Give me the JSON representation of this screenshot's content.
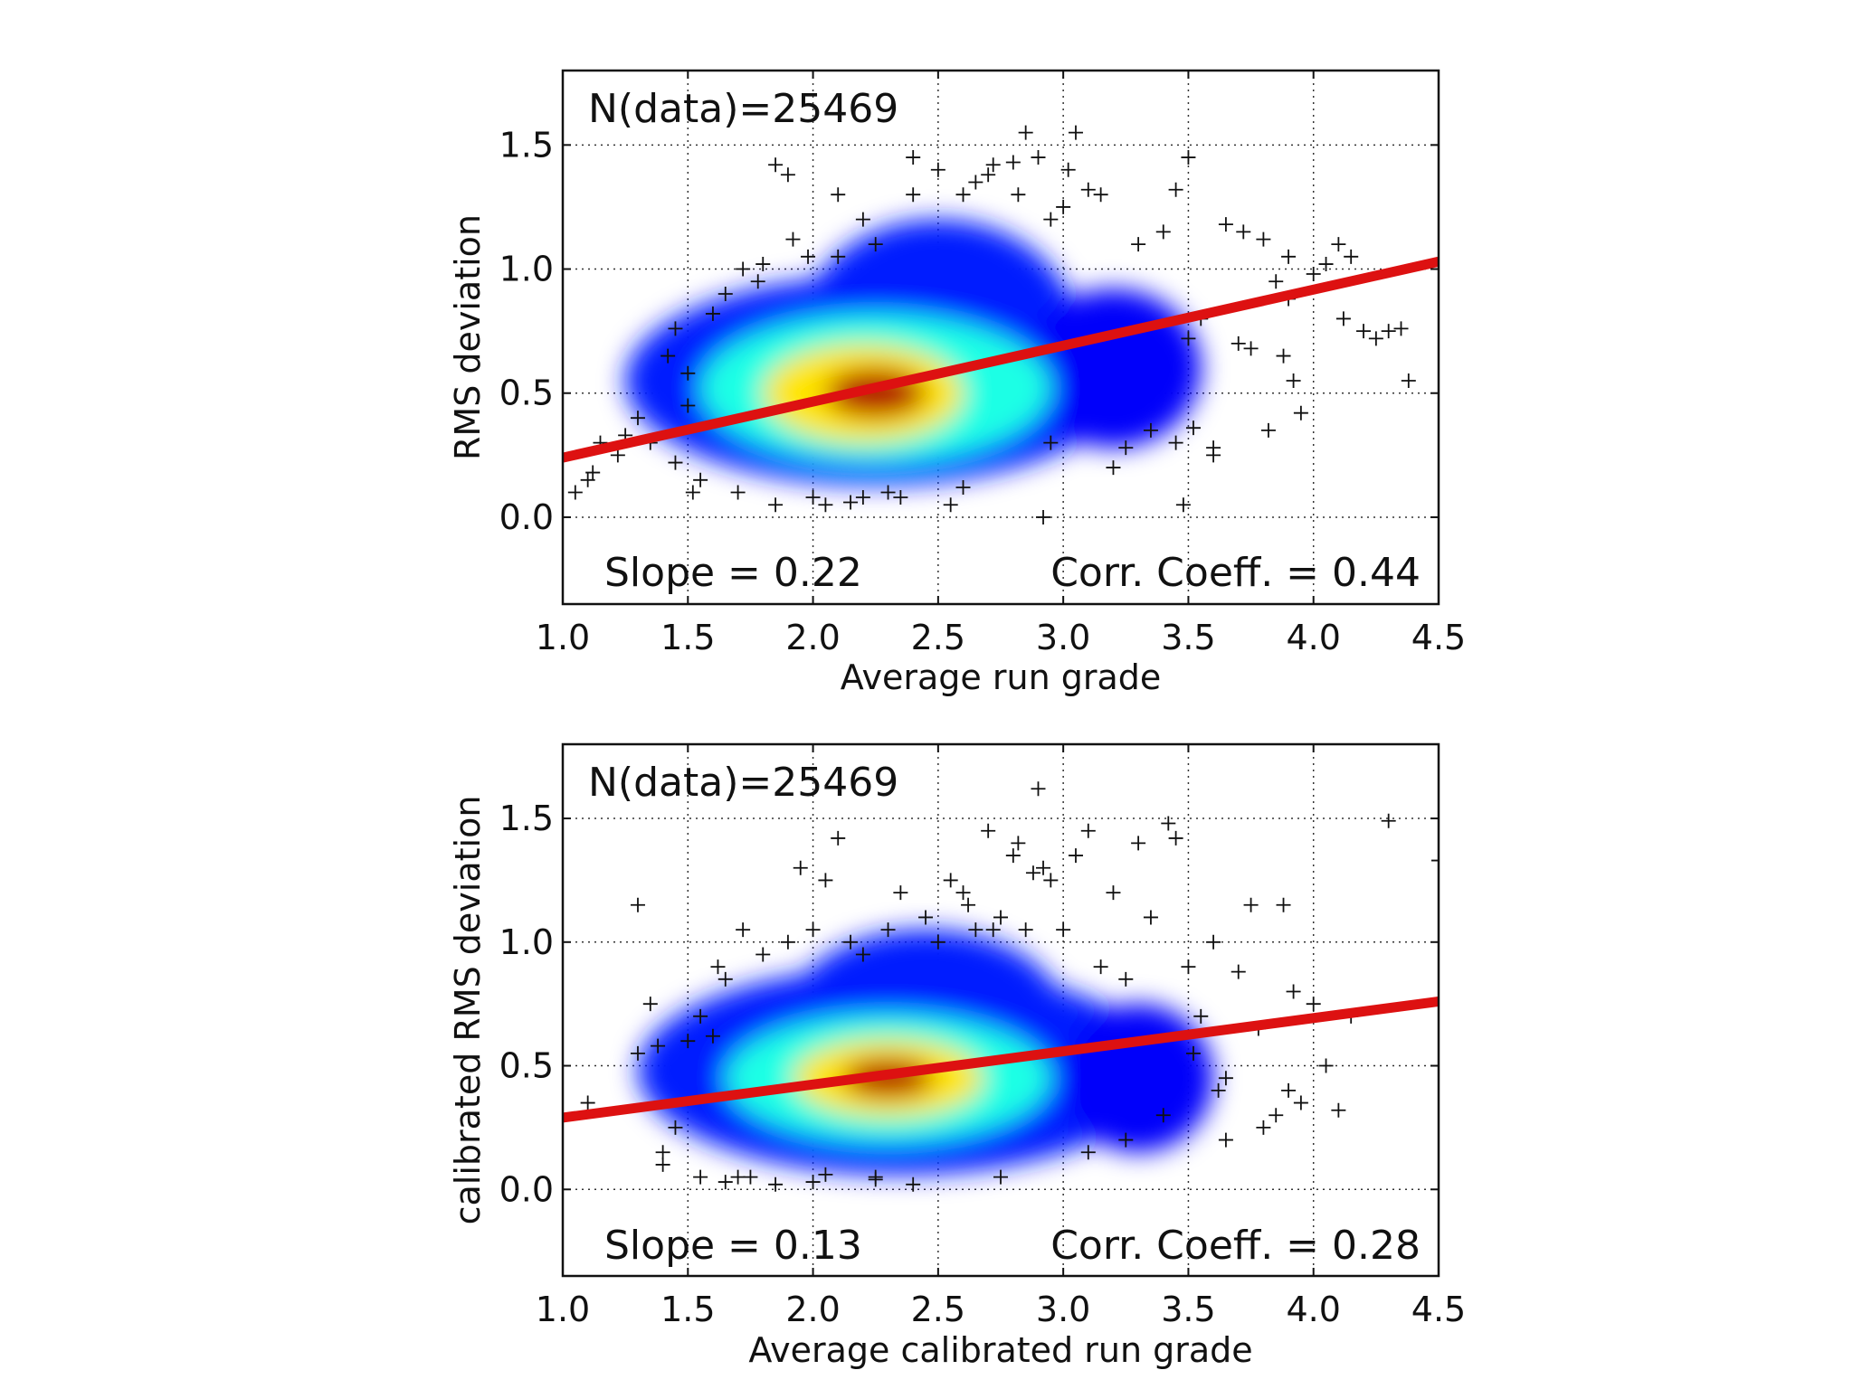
{
  "chart_data": [
    {
      "type": "scatter",
      "subtype": "density-heatmap-with-outliers-and-fit-line",
      "xlabel": "Average run grade",
      "ylabel": "RMS deviation",
      "xlim": [
        1.0,
        4.5
      ],
      "ylim": [
        -0.35,
        1.8
      ],
      "xticks": [
        "1.0",
        "1.5",
        "2.0",
        "2.5",
        "3.0",
        "3.5",
        "4.0",
        "4.5"
      ],
      "yticks": [
        "0.0",
        "0.5",
        "1.0",
        "1.5"
      ],
      "grid": true,
      "n_label": "N(data)=25469",
      "slope_label": "Slope = 0.22",
      "corr_label": "Corr. Coeff. = 0.44",
      "fit_line": {
        "x": [
          1.0,
          4.5
        ],
        "y": [
          0.24,
          1.03
        ],
        "color": "#dd1111"
      },
      "density": {
        "center_x": 2.25,
        "center_y": 0.5,
        "blobs": [
          {
            "x": 2.25,
            "y": 0.55,
            "rx": 1.0,
            "ry": 0.42,
            "level": 0.15
          },
          {
            "x": 2.5,
            "y": 0.75,
            "rx": 0.55,
            "ry": 0.45,
            "level": 0.15
          },
          {
            "x": 3.2,
            "y": 0.6,
            "rx": 0.35,
            "ry": 0.32,
            "level": 0.12
          },
          {
            "x": 2.25,
            "y": 0.52,
            "rx": 0.7,
            "ry": 0.3,
            "level": 0.4
          },
          {
            "x": 2.2,
            "y": 0.5,
            "rx": 0.4,
            "ry": 0.2,
            "level": 0.65
          },
          {
            "x": 2.25,
            "y": 0.5,
            "rx": 0.2,
            "ry": 0.1,
            "level": 0.95
          }
        ]
      },
      "outliers": {
        "x": [
          1.05,
          1.1,
          1.12,
          1.15,
          1.22,
          1.25,
          1.3,
          1.35,
          1.42,
          1.45,
          1.5,
          1.5,
          1.52,
          1.6,
          1.65,
          1.72,
          1.78,
          1.8,
          1.85,
          1.9,
          1.92,
          1.98,
          2.0,
          2.05,
          2.1,
          2.1,
          2.15,
          2.2,
          2.2,
          2.25,
          2.35,
          2.4,
          2.4,
          2.5,
          2.55,
          2.6,
          2.65,
          2.7,
          2.72,
          2.8,
          2.82,
          2.85,
          2.9,
          2.92,
          2.95,
          3.0,
          3.02,
          3.05,
          3.1,
          3.15,
          3.2,
          3.25,
          3.3,
          3.35,
          3.4,
          3.45,
          3.48,
          3.5,
          3.5,
          3.52,
          3.55,
          3.6,
          3.65,
          3.7,
          3.72,
          3.75,
          3.8,
          3.82,
          3.85,
          3.88,
          3.9,
          3.92,
          3.95,
          4.0,
          4.05,
          4.1,
          4.12,
          4.15,
          4.2,
          4.25,
          4.3,
          4.35,
          4.38,
          1.7,
          1.85,
          2.95,
          3.45,
          3.6,
          3.9,
          1.45,
          1.55,
          2.3,
          2.6
        ],
        "y": [
          0.1,
          0.15,
          0.18,
          0.3,
          0.25,
          0.33,
          0.4,
          0.3,
          0.65,
          0.76,
          0.58,
          0.45,
          0.1,
          0.82,
          0.9,
          1.0,
          0.95,
          1.02,
          1.42,
          1.38,
          1.12,
          1.05,
          0.08,
          0.05,
          1.05,
          1.3,
          0.06,
          1.2,
          0.08,
          1.1,
          0.08,
          1.3,
          1.45,
          1.4,
          0.05,
          1.3,
          1.35,
          1.38,
          1.42,
          1.43,
          1.3,
          1.55,
          1.45,
          0.0,
          1.2,
          1.25,
          1.4,
          1.55,
          1.32,
          1.3,
          0.2,
          0.28,
          1.1,
          0.35,
          1.15,
          1.32,
          0.05,
          1.45,
          0.72,
          0.36,
          0.8,
          0.28,
          1.18,
          0.7,
          1.15,
          0.68,
          1.12,
          0.35,
          0.95,
          0.65,
          1.05,
          0.55,
          0.42,
          0.98,
          1.02,
          1.1,
          0.8,
          1.05,
          0.75,
          0.72,
          0.75,
          0.76,
          0.55,
          0.1,
          0.05,
          0.3,
          0.3,
          0.25,
          0.88,
          0.22,
          0.15,
          0.1,
          0.12
        ]
      }
    },
    {
      "type": "scatter",
      "subtype": "density-heatmap-with-outliers-and-fit-line",
      "xlabel": "Average calibrated run grade",
      "ylabel": "calibrated RMS deviation",
      "xlim": [
        1.0,
        4.5
      ],
      "ylim": [
        -0.35,
        1.8
      ],
      "xticks": [
        "1.0",
        "1.5",
        "2.0",
        "2.5",
        "3.0",
        "3.5",
        "4.0",
        "4.5"
      ],
      "yticks": [
        "0.0",
        "0.5",
        "1.0",
        "1.5"
      ],
      "grid": true,
      "n_label": "N(data)=25469",
      "slope_label": "Slope = 0.13",
      "corr_label": "Corr. Coeff. = 0.28",
      "fit_line": {
        "x": [
          1.0,
          4.5
        ],
        "y": [
          0.29,
          0.76
        ],
        "color": "#dd1111"
      },
      "density": {
        "center_x": 2.3,
        "center_y": 0.45,
        "blobs": [
          {
            "x": 2.35,
            "y": 0.48,
            "rx": 1.05,
            "ry": 0.42,
            "level": 0.15
          },
          {
            "x": 2.45,
            "y": 0.7,
            "rx": 0.55,
            "ry": 0.35,
            "level": 0.15
          },
          {
            "x": 3.3,
            "y": 0.45,
            "rx": 0.3,
            "ry": 0.3,
            "level": 0.12
          },
          {
            "x": 2.3,
            "y": 0.45,
            "rx": 0.65,
            "ry": 0.26,
            "level": 0.4
          },
          {
            "x": 2.3,
            "y": 0.45,
            "rx": 0.38,
            "ry": 0.16,
            "level": 0.65
          },
          {
            "x": 2.3,
            "y": 0.45,
            "rx": 0.18,
            "ry": 0.08,
            "level": 0.95
          }
        ]
      },
      "outliers": {
        "x": [
          1.1,
          1.3,
          1.3,
          1.35,
          1.38,
          1.4,
          1.45,
          1.5,
          1.55,
          1.6,
          1.62,
          1.65,
          1.7,
          1.72,
          1.8,
          1.85,
          1.9,
          1.95,
          2.0,
          2.0,
          2.05,
          2.1,
          2.15,
          2.2,
          2.25,
          2.3,
          2.35,
          2.4,
          2.45,
          2.5,
          2.55,
          2.6,
          2.62,
          2.65,
          2.7,
          2.72,
          2.75,
          2.8,
          2.82,
          2.85,
          2.88,
          2.9,
          2.92,
          2.95,
          3.0,
          3.05,
          3.1,
          3.15,
          3.2,
          3.25,
          3.3,
          3.35,
          3.4,
          3.42,
          3.45,
          3.5,
          3.52,
          3.55,
          3.6,
          3.62,
          3.65,
          3.7,
          3.75,
          3.78,
          3.8,
          3.85,
          3.88,
          3.9,
          3.92,
          3.95,
          4.0,
          4.05,
          4.1,
          4.15,
          4.3,
          4.5,
          1.4,
          1.75,
          2.05,
          3.1,
          3.25,
          3.65,
          1.55,
          1.65,
          2.25,
          2.75
        ],
        "y": [
          0.35,
          0.55,
          1.15,
          0.75,
          0.58,
          0.15,
          0.25,
          0.6,
          0.7,
          0.62,
          0.9,
          0.85,
          0.05,
          1.05,
          0.95,
          0.02,
          1.0,
          1.3,
          1.05,
          0.03,
          1.25,
          1.42,
          1.0,
          0.95,
          0.05,
          1.05,
          1.2,
          0.02,
          1.1,
          1.0,
          1.25,
          1.2,
          1.15,
          1.05,
          1.45,
          1.05,
          1.1,
          1.35,
          1.4,
          1.05,
          1.28,
          1.62,
          1.3,
          1.25,
          1.05,
          1.35,
          1.45,
          0.9,
          1.2,
          0.85,
          1.4,
          1.1,
          0.3,
          1.48,
          1.42,
          0.9,
          0.55,
          0.7,
          1.0,
          0.4,
          0.45,
          0.88,
          1.15,
          0.65,
          0.25,
          0.3,
          1.15,
          0.4,
          0.8,
          0.35,
          0.75,
          0.5,
          0.32,
          0.7,
          1.49,
          1.33,
          0.1,
          0.05,
          0.06,
          0.15,
          0.2,
          0.2,
          0.05,
          0.03,
          0.04,
          0.05
        ]
      }
    }
  ]
}
